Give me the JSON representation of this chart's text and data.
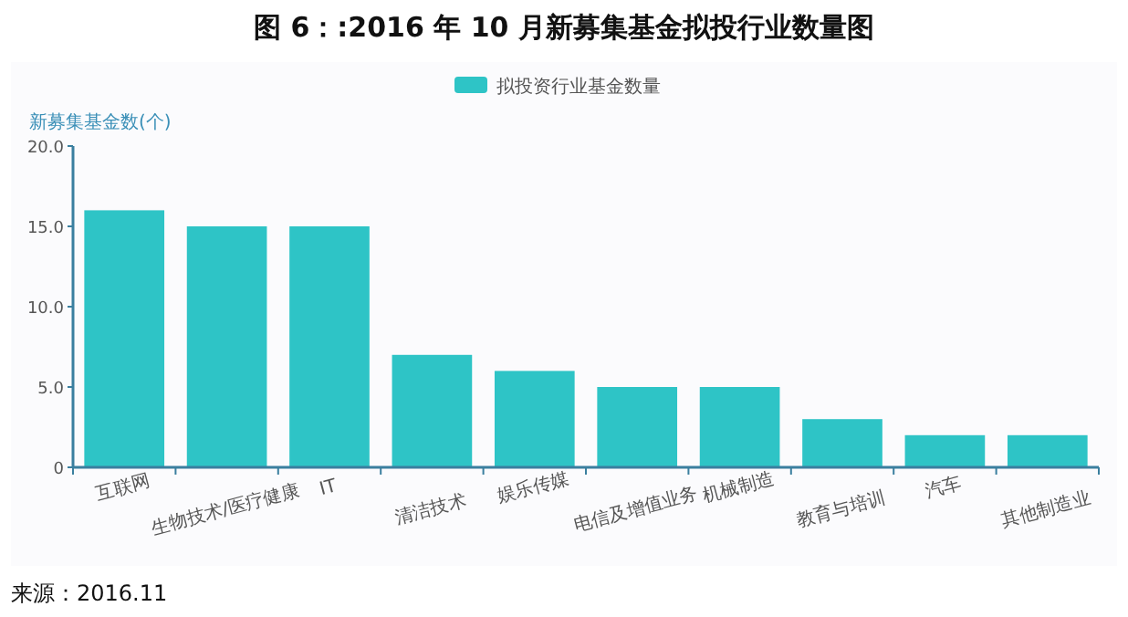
{
  "chart_data": {
    "type": "bar",
    "title": "图 6：:2016 年 10 月新募集基金拟投行业数量图",
    "ylabel": "新募集基金数(个)",
    "annotations": [
      "来源：2016.11"
    ],
    "categories": [
      "互联网",
      "生物技术/医疗健康",
      "IT",
      "清洁技术",
      "娱乐传媒",
      "电信及增值业务",
      "机械制造",
      "教育与培训",
      "汽车",
      "其他制造业"
    ],
    "series": [
      {
        "name": "拟投资行业基金数量",
        "color": "#2ec4c6",
        "values": [
          16,
          15,
          15,
          7,
          6,
          5,
          5,
          3,
          2,
          2
        ]
      }
    ],
    "ylim": [
      0,
      20
    ],
    "yticks": [
      0,
      {
        "value": 5,
        "label": "5.0"
      },
      {
        "value": 10,
        "label": "10.0"
      },
      {
        "value": 15,
        "label": "15.0"
      },
      {
        "value": 20,
        "label": "20.0"
      }
    ],
    "legend": "top"
  }
}
